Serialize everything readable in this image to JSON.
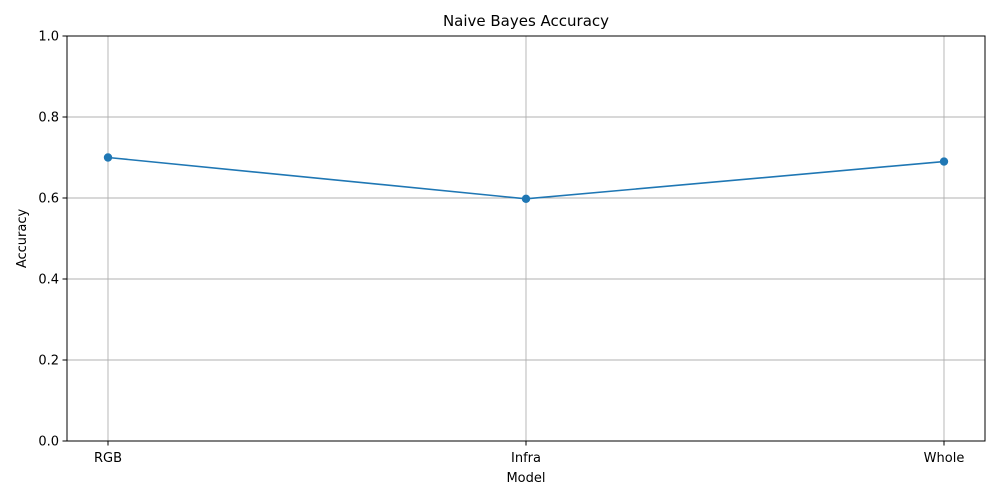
{
  "chart_data": {
    "type": "line",
    "title": "Naive Bayes Accuracy",
    "xlabel": "Model",
    "ylabel": "Accuracy",
    "categories": [
      "RGB",
      "Infra",
      "Whole"
    ],
    "series": [
      {
        "values": [
          0.7,
          0.598,
          0.69
        ],
        "color": "#1f77b4",
        "marker": "circle"
      }
    ],
    "ylim": [
      0,
      1.0
    ],
    "yticks": [
      0.0,
      0.2,
      0.4,
      0.6,
      0.8,
      1.0
    ],
    "ytick_labels": [
      "0.0",
      "0.2",
      "0.4",
      "0.6",
      "0.8",
      "1.0"
    ],
    "grid": true,
    "legend": "none"
  }
}
